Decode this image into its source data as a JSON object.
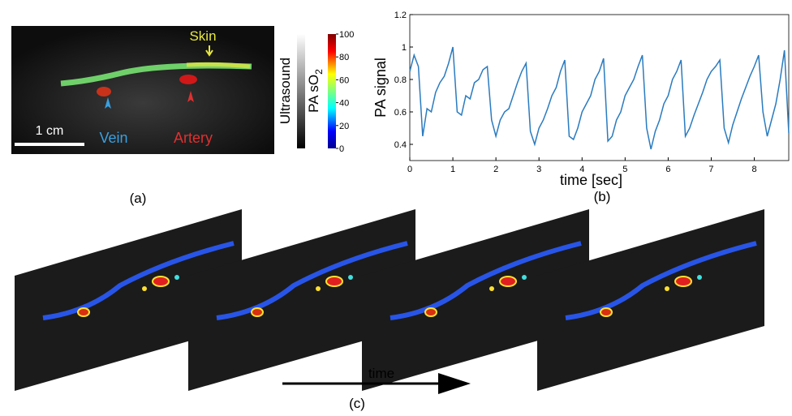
{
  "panel_a": {
    "skin": "Skin",
    "vein": "Vein",
    "artery": "Artery",
    "scale": "1 cm",
    "ultrasound": "Ultrasound",
    "pa_so2": {
      "text": "PA sO",
      "subscript": "2"
    },
    "colorbar_ticks": [
      0,
      20,
      40,
      60,
      80,
      100
    ],
    "caption": "(a)"
  },
  "chart_data": {
    "type": "line",
    "xlabel": "time [sec]",
    "ylabel": "PA signal",
    "caption": "(b)",
    "xlim": [
      0,
      8.8
    ],
    "ylim": [
      0.3,
      1.2
    ],
    "xticks": [
      0,
      1,
      2,
      3,
      4,
      5,
      6,
      7,
      8
    ],
    "yticks": [
      0.4,
      0.6,
      0.8,
      1,
      1.2
    ],
    "x": [
      0,
      0.1,
      0.2,
      0.3,
      0.4,
      0.5,
      0.6,
      0.7,
      0.8,
      0.9,
      1,
      1.1,
      1.2,
      1.3,
      1.4,
      1.5,
      1.6,
      1.7,
      1.8,
      1.9,
      2,
      2.1,
      2.2,
      2.3,
      2.4,
      2.5,
      2.6,
      2.7,
      2.8,
      2.9,
      3,
      3.1,
      3.2,
      3.3,
      3.4,
      3.5,
      3.6,
      3.7,
      3.8,
      3.9,
      4,
      4.1,
      4.2,
      4.3,
      4.4,
      4.5,
      4.6,
      4.7,
      4.8,
      4.9,
      5,
      5.1,
      5.2,
      5.3,
      5.4,
      5.5,
      5.6,
      5.7,
      5.8,
      5.9,
      6,
      6.1,
      6.2,
      6.3,
      6.4,
      6.5,
      6.6,
      6.7,
      6.8,
      6.9,
      7,
      7.1,
      7.2,
      7.3,
      7.4,
      7.5,
      7.6,
      7.7,
      7.8,
      7.9,
      8,
      8.1,
      8.2,
      8.3,
      8.4,
      8.5,
      8.6,
      8.7,
      8.8
    ],
    "series": [
      {
        "color": "#2a7bbf",
        "values": [
          0.85,
          0.95,
          0.88,
          0.45,
          0.62,
          0.6,
          0.72,
          0.78,
          0.82,
          0.9,
          1.0,
          0.6,
          0.58,
          0.7,
          0.68,
          0.78,
          0.8,
          0.86,
          0.88,
          0.55,
          0.45,
          0.55,
          0.6,
          0.62,
          0.7,
          0.78,
          0.85,
          0.9,
          0.48,
          0.4,
          0.5,
          0.55,
          0.62,
          0.7,
          0.75,
          0.85,
          0.92,
          0.45,
          0.43,
          0.5,
          0.6,
          0.65,
          0.7,
          0.8,
          0.85,
          0.93,
          0.42,
          0.45,
          0.55,
          0.6,
          0.7,
          0.75,
          0.8,
          0.88,
          0.95,
          0.5,
          0.37,
          0.48,
          0.55,
          0.65,
          0.7,
          0.8,
          0.85,
          0.92,
          0.45,
          0.5,
          0.58,
          0.65,
          0.72,
          0.8,
          0.85,
          0.88,
          0.92,
          0.5,
          0.41,
          0.52,
          0.6,
          0.68,
          0.75,
          0.82,
          0.88,
          0.95,
          0.6,
          0.45,
          0.55,
          0.65,
          0.8,
          0.98,
          0.47
        ]
      }
    ]
  },
  "panel_c": {
    "arrow_label": "time",
    "caption": "(c)"
  }
}
